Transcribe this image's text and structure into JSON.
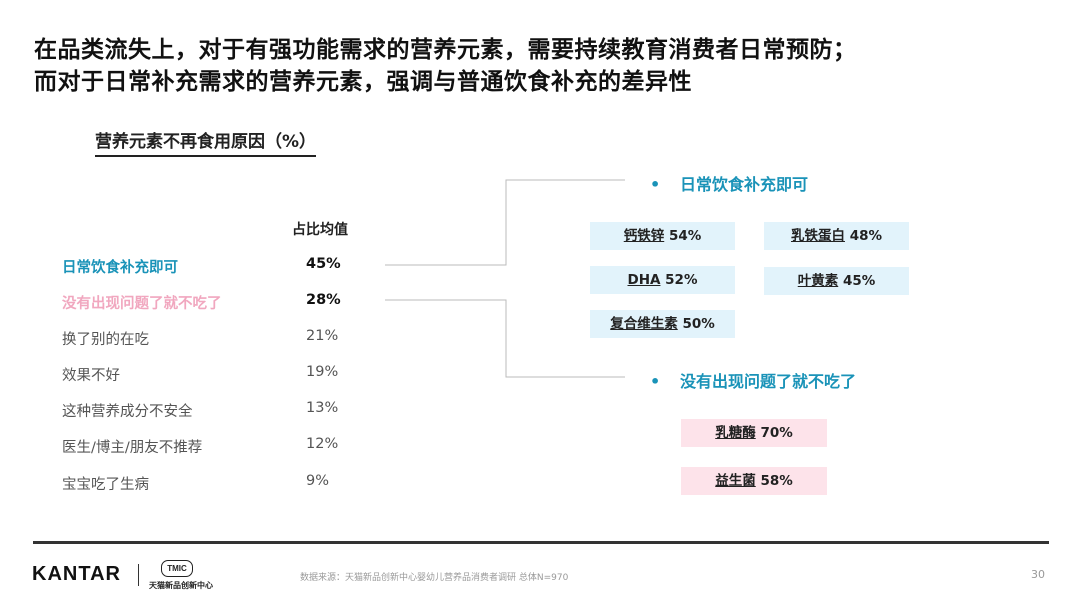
{
  "title_line1": "在品类流失上，对于有强功能需求的营养元素，需要持续教育消费者日常预防；",
  "title_line2": "而对于日常补充需求的营养元素，强调与普通饮食补充的差异性",
  "subtitle": "营养元素不再食用原因（%）",
  "column_header": "占比均值",
  "reasons": [
    {
      "label": "日常饮食补充即可",
      "value": "45%"
    },
    {
      "label": "没有出现问题了就不吃了",
      "value": "28%"
    },
    {
      "label": "换了别的在吃",
      "value": "21%"
    },
    {
      "label": "效果不好",
      "value": "19%"
    },
    {
      "label": "这种营养成分不安全",
      "value": "13%"
    },
    {
      "label": "医生/博主/朋友不推荐",
      "value": "12%"
    },
    {
      "label": "宝宝吃了生病",
      "value": "9%"
    }
  ],
  "section_daily": {
    "bullet": "•",
    "label": "日常饮食补充即可",
    "tags": [
      {
        "name": "钙铁锌",
        "value": "54%"
      },
      {
        "name": "乳铁蛋白",
        "value": "48%"
      },
      {
        "name": "DHA",
        "value": "52%"
      },
      {
        "name": "叶黄素",
        "value": "45%"
      },
      {
        "name": "复合维生素",
        "value": "50%"
      }
    ]
  },
  "section_noproblem": {
    "bullet": "•",
    "label": "没有出现问题了就不吃了",
    "tags": [
      {
        "name": "乳糖酶",
        "value": "70%"
      },
      {
        "name": "益生菌",
        "value": "58%"
      }
    ]
  },
  "footer": {
    "brand": "KANTAR",
    "tmic_mark": "TMIC",
    "tmic_name": "天猫新品创新中心",
    "source": "数据来源：天猫新品创新中心婴幼儿营养品消费者调研  总体N=970",
    "page": "30"
  },
  "colors": {
    "accent_blue": "#1a93b8",
    "accent_pink": "#f1a7bf",
    "tag_blue_bg": "#e2f3fb",
    "tag_pink_bg": "#fde3ea"
  }
}
